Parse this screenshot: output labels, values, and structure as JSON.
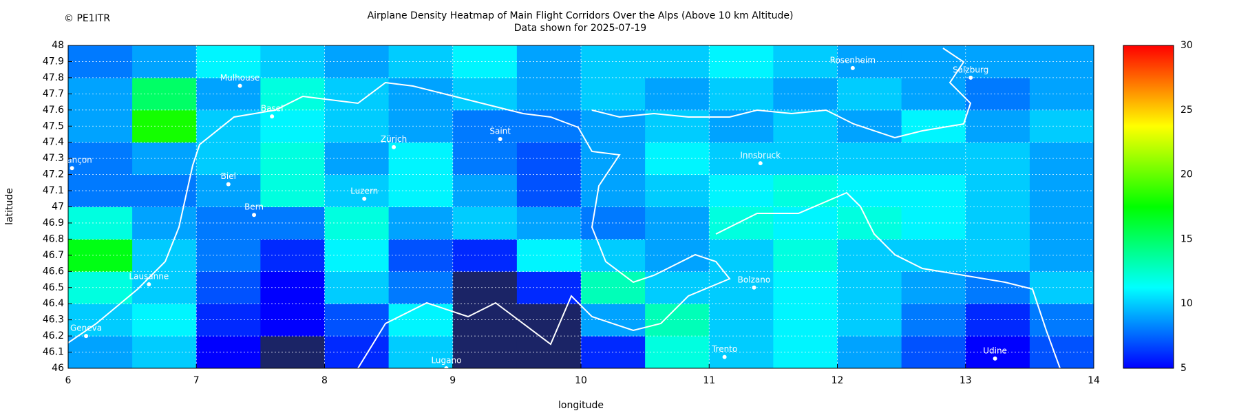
{
  "chart_data": {
    "type": "heatmap",
    "title": "Airplane Density Heatmap of Main Flight Corridors Over the Alps (Above 10 km Altitude)",
    "subtitle": "Data shown for 2025-07-19",
    "credit": "© PE1ITR",
    "xlabel": "longitude",
    "ylabel": "latitude",
    "xlim": [
      6,
      14
    ],
    "ylim": [
      46,
      48
    ],
    "xticks": [
      6,
      7,
      8,
      9,
      10,
      11,
      12,
      13,
      14
    ],
    "yticks": [
      46,
      46.1,
      46.2,
      46.3,
      46.4,
      46.5,
      46.6,
      46.7,
      46.8,
      46.9,
      47,
      47.1,
      47.2,
      47.3,
      47.4,
      47.5,
      47.6,
      47.7,
      47.8,
      47.9,
      48
    ],
    "grid": true,
    "x_bins": [
      6,
      6.5,
      7,
      7.5,
      8,
      8.5,
      9,
      9.5,
      10,
      10.5,
      11,
      11.5,
      12,
      12.5,
      13,
      13.5,
      14
    ],
    "y_bins": [
      46,
      46.2,
      46.4,
      46.6,
      46.8,
      47,
      47.2,
      47.4,
      47.6,
      47.8,
      48
    ],
    "values": [
      [
        9,
        10,
        5,
        4,
        6,
        10,
        4,
        4,
        6,
        12,
        10,
        11,
        9,
        7,
        5,
        7
      ],
      [
        10,
        11,
        6,
        5,
        7,
        11,
        4,
        4,
        9,
        13,
        10,
        11,
        10,
        8,
        6,
        8
      ],
      [
        12,
        10,
        7,
        5,
        10,
        8,
        4,
        6,
        13,
        10,
        10,
        11,
        10,
        9,
        8,
        10
      ],
      [
        17,
        10,
        8,
        6,
        11,
        7,
        6,
        11,
        10,
        9,
        10,
        12,
        10,
        10,
        10,
        9
      ],
      [
        12,
        9,
        8,
        8,
        12,
        9,
        10,
        9,
        8,
        9,
        12,
        11,
        12,
        11,
        10,
        9
      ],
      [
        8,
        8,
        9,
        12,
        10,
        11,
        9,
        7,
        9,
        10,
        11,
        12,
        11,
        11,
        10,
        9
      ],
      [
        8,
        9,
        10,
        12,
        9,
        11,
        8,
        7,
        9,
        11,
        10,
        10,
        10,
        10,
        10,
        9
      ],
      [
        9,
        18,
        10,
        11,
        10,
        9,
        8,
        8,
        9,
        10,
        9,
        10,
        9,
        11,
        9,
        10
      ],
      [
        9,
        15,
        9,
        12,
        10,
        9,
        10,
        9,
        10,
        9,
        10,
        9,
        10,
        9,
        8,
        9
      ],
      [
        8,
        9,
        11,
        10,
        9,
        10,
        11,
        9,
        10,
        10,
        11,
        10,
        9,
        9,
        9,
        9
      ]
    ],
    "zlim": [
      5,
      30
    ],
    "zticks": [
      5,
      10,
      15,
      20,
      25,
      30
    ],
    "colormap": [
      "#0000ff",
      "#00ffff",
      "#00ff00",
      "#ffff00",
      "#ff0000"
    ],
    "background_color": "#1b2466",
    "cities": [
      {
        "name": "Besançon",
        "lon": 6.03,
        "lat": 47.24
      },
      {
        "name": "Mulhouse",
        "lon": 7.34,
        "lat": 47.75
      },
      {
        "name": "Basel",
        "lon": 7.59,
        "lat": 47.56
      },
      {
        "name": "Biel",
        "lon": 7.25,
        "lat": 47.14
      },
      {
        "name": "Bern",
        "lon": 7.45,
        "lat": 46.95
      },
      {
        "name": "Lausanne",
        "lon": 6.63,
        "lat": 46.52
      },
      {
        "name": "Geneva",
        "lon": 6.14,
        "lat": 46.2
      },
      {
        "name": "Luzern",
        "lon": 8.31,
        "lat": 47.05
      },
      {
        "name": "Zürich",
        "lon": 8.54,
        "lat": 47.37
      },
      {
        "name": "Saint",
        "lon": 9.37,
        "lat": 47.42
      },
      {
        "name": "Lugano",
        "lon": 8.95,
        "lat": 46.0
      },
      {
        "name": "Innsbruck",
        "lon": 11.4,
        "lat": 47.27
      },
      {
        "name": "Rosenheim",
        "lon": 12.12,
        "lat": 47.86
      },
      {
        "name": "Salzburg",
        "lon": 13.04,
        "lat": 47.8
      },
      {
        "name": "Bolzano",
        "lon": 11.35,
        "lat": 46.5
      },
      {
        "name": "Trento",
        "lon": 11.12,
        "lat": 46.07
      },
      {
        "name": "Udine",
        "lon": 13.23,
        "lat": 46.06
      }
    ]
  }
}
